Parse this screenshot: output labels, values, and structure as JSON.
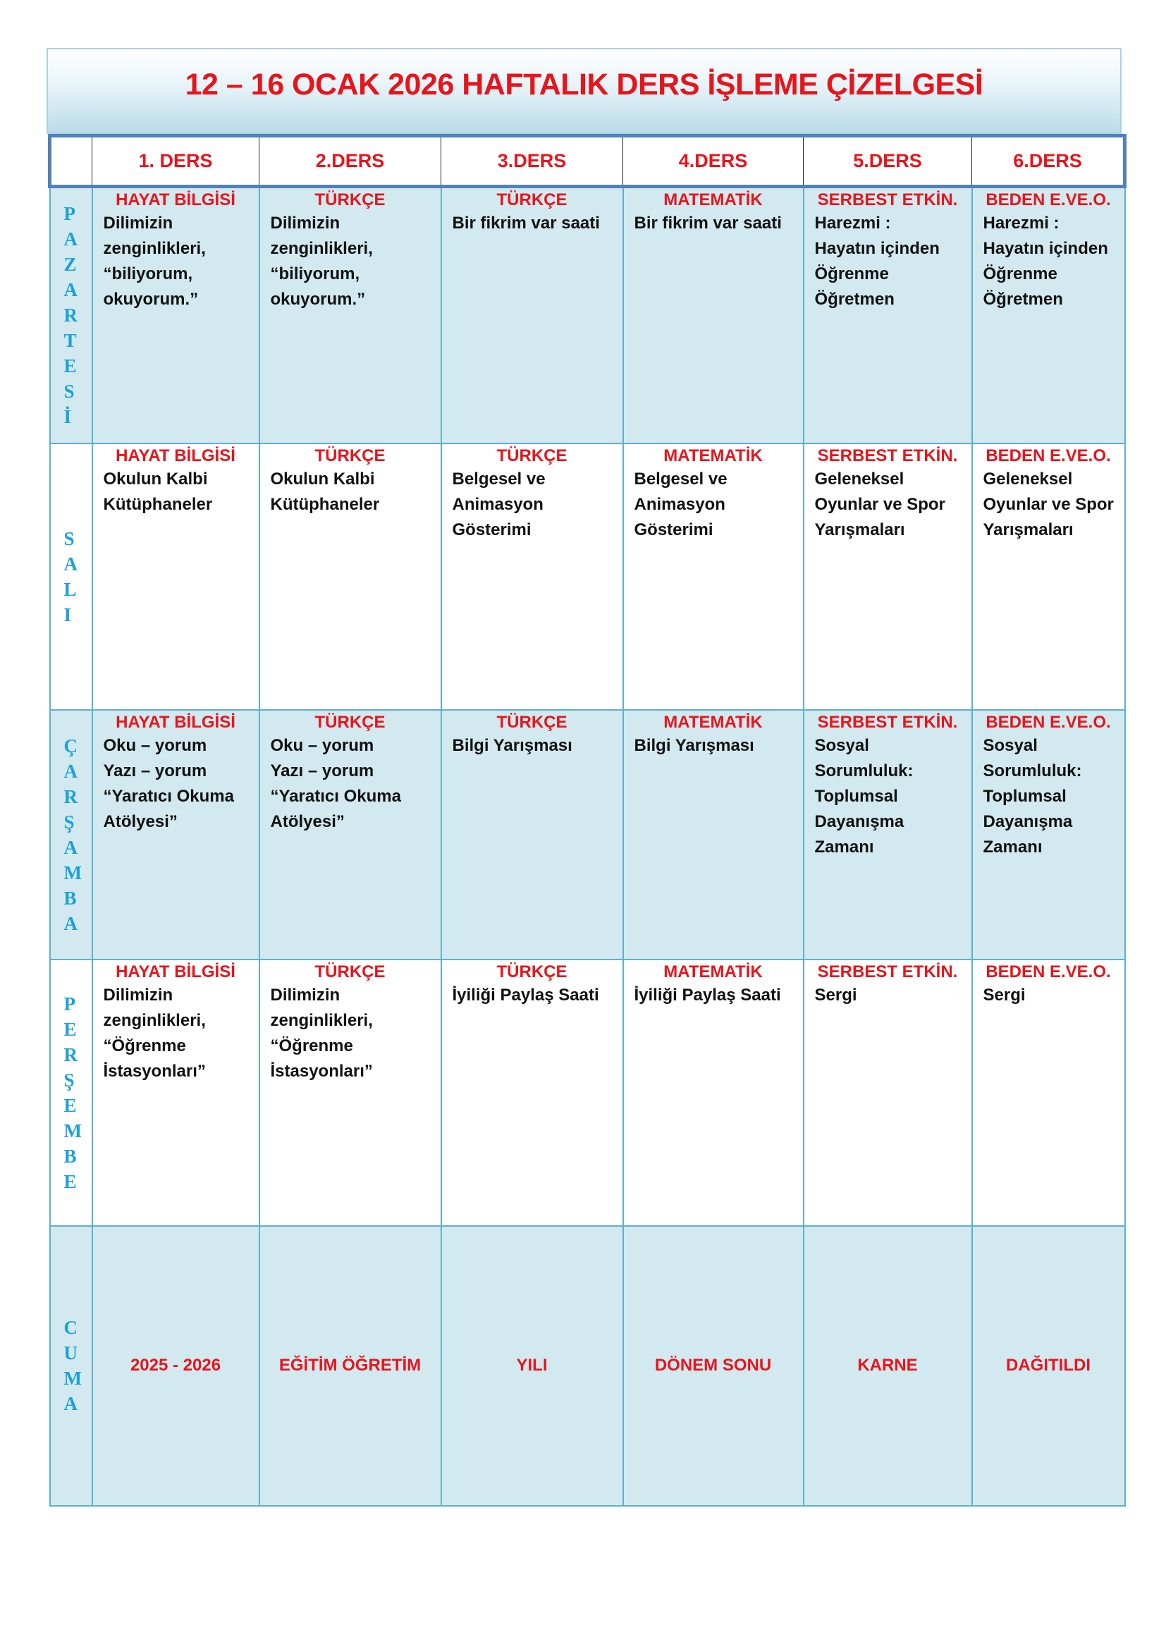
{
  "title": "12 – 16 OCAK 2026 HAFTALIK DERS İŞLEME ÇİZELGESİ",
  "columns": [
    "1. DERS",
    "2.DERS",
    "3.DERS",
    "4.DERS",
    "5.DERS",
    "6.DERS"
  ],
  "days": [
    {
      "name": "PAZARTESİ",
      "letters": [
        "P",
        "A",
        "Z",
        "A",
        "R",
        "T",
        "E",
        "S",
        "İ"
      ],
      "lessons": [
        {
          "subject": "HAYAT BİLGİSİ",
          "topic": "Dilimizin\nzenginlikleri,\n“biliyorum,\nokuyorum.”"
        },
        {
          "subject": "TÜRKÇE",
          "topic": "Dilimizin\nzenginlikleri,\n“biliyorum,\nokuyorum.”"
        },
        {
          "subject": "TÜRKÇE",
          "topic": "Bir fikrim var saati"
        },
        {
          "subject": "MATEMATİK",
          "topic": "Bir fikrim var saati"
        },
        {
          "subject": "SERBEST ETKİN.",
          "topic": "Harezmi :\nHayatın içinden\nÖğrenme\nÖğretmen"
        },
        {
          "subject": "BEDEN E.VE.O.",
          "topic": "Harezmi :\nHayatın içinden\nÖğrenme\nÖğretmen"
        }
      ]
    },
    {
      "name": "SALI",
      "letters": [
        "S",
        "A",
        "L",
        "I"
      ],
      "lessons": [
        {
          "subject": "HAYAT BİLGİSİ",
          "topic": "Okulun Kalbi\nKütüphaneler"
        },
        {
          "subject": "TÜRKÇE",
          "topic": "Okulun Kalbi\nKütüphaneler"
        },
        {
          "subject": "TÜRKÇE",
          "topic": "Belgesel ve\nAnimasyon\nGösterimi"
        },
        {
          "subject": "MATEMATİK",
          "topic": "Belgesel ve\nAnimasyon\nGösterimi"
        },
        {
          "subject": "SERBEST ETKİN.",
          "topic": "Geleneksel\nOyunlar ve Spor\nYarışmaları"
        },
        {
          "subject": "BEDEN E.VE.O.",
          "topic": "Geleneksel\nOyunlar ve Spor\nYarışmaları"
        }
      ]
    },
    {
      "name": "ÇARŞAMBA",
      "letters": [
        "Ç",
        "A",
        "R",
        "Ş",
        "A",
        "M",
        "B",
        "A"
      ],
      "lessons": [
        {
          "subject": "HAYAT BİLGİSİ",
          "topic": "Oku – yorum\nYazı – yorum\n“Yaratıcı Okuma\nAtölyesi”"
        },
        {
          "subject": "TÜRKÇE",
          "topic": "Oku – yorum\nYazı – yorum\n“Yaratıcı Okuma\nAtölyesi”"
        },
        {
          "subject": "TÜRKÇE",
          "topic": "Bilgi Yarışması"
        },
        {
          "subject": "MATEMATİK",
          "topic": "Bilgi Yarışması"
        },
        {
          "subject": "SERBEST ETKİN.",
          "topic": "Sosyal\nSorumluluk:\nToplumsal\nDayanışma\nZamanı"
        },
        {
          "subject": "BEDEN E.VE.O.",
          "topic": "Sosyal\nSorumluluk:\nToplumsal\nDayanışma\nZamanı"
        }
      ]
    },
    {
      "name": "PERŞEMBE",
      "letters": [
        "P",
        "E",
        "R",
        "Ş",
        "E",
        "M",
        "B",
        "E"
      ],
      "lessons": [
        {
          "subject": "HAYAT BİLGİSİ",
          "topic": "Dilimizin\nzenginlikleri,\n“Öğrenme\nİstasyonları”"
        },
        {
          "subject": "TÜRKÇE",
          "topic": "Dilimizin\nzenginlikleri,\n“Öğrenme\nİstasyonları”"
        },
        {
          "subject": "TÜRKÇE",
          "topic": "İyiliği Paylaş Saati"
        },
        {
          "subject": "MATEMATİK",
          "topic": "İyiliği Paylaş Saati"
        },
        {
          "subject": "SERBEST ETKİN.",
          "topic": "Sergi"
        },
        {
          "subject": "BEDEN E.VE.O.",
          "topic": "Sergi"
        }
      ]
    }
  ],
  "friday": {
    "name": "CUMA",
    "letters": [
      "C",
      "U",
      "M",
      "A"
    ],
    "cells": [
      "2025 - 2026",
      "EĞİTİM ÖĞRETİM",
      "YILI",
      "DÖNEM SONU",
      "KARNE",
      "DAĞITILDI"
    ]
  },
  "colors": {
    "title": "#e8141b",
    "day_letters": "#1ba1d8",
    "row_fill": "#d3e9f0",
    "border": "#4f81bd"
  }
}
